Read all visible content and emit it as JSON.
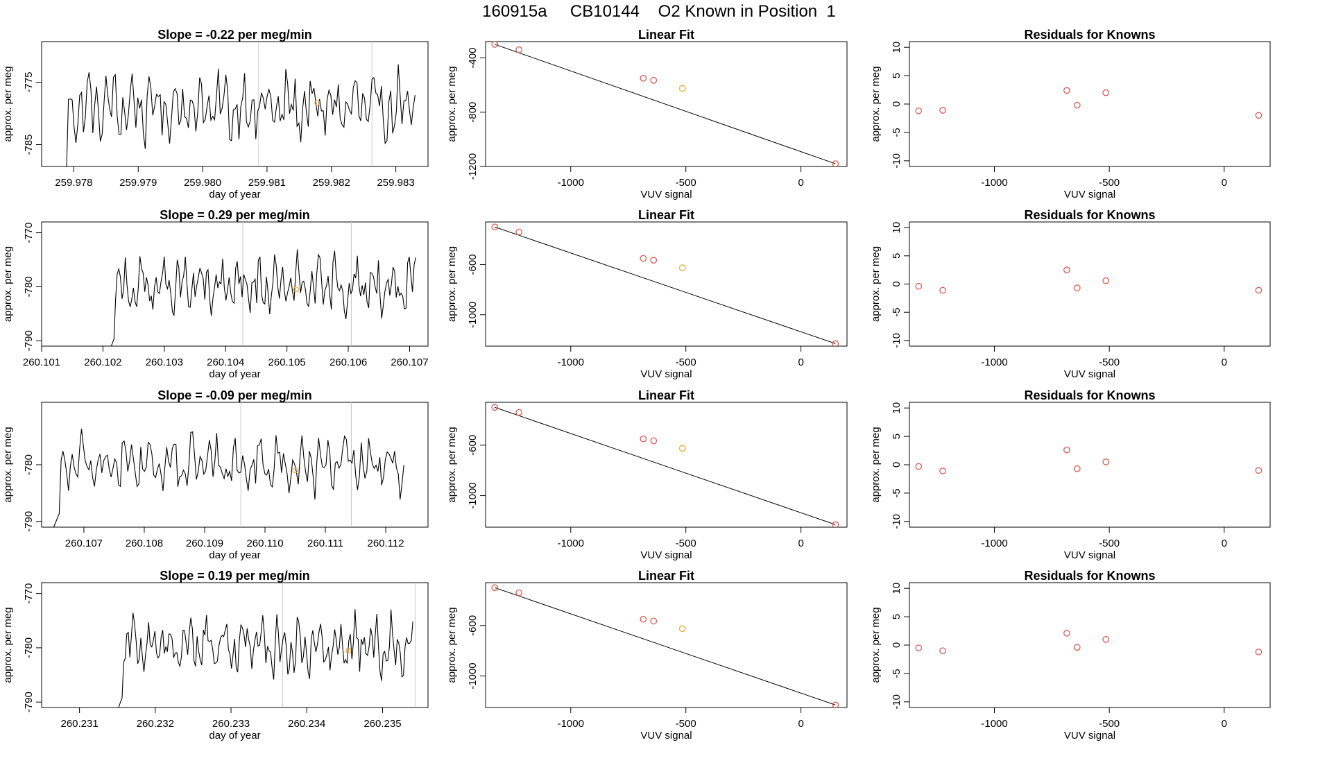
{
  "figure_title": "160915a     CB10144    O2 Known in Position  1",
  "colors": {
    "trace": "#000000",
    "marker_red": "#e0584f",
    "marker_orange": "#f0a830",
    "guide_line": "#c8c8c8",
    "axis": "#000000"
  },
  "chart_data": [
    {
      "panel": "row1-timeseries",
      "type": "line",
      "title": "Slope =  -0.22  per meg/min",
      "xlabel": "day of year",
      "ylabel": "approx. per meg",
      "xlim": [
        259.9775,
        259.9835
      ],
      "ylim": [
        -788.5,
        -768.5
      ],
      "xticks": [
        259.978,
        259.979,
        259.98,
        259.981,
        259.982,
        259.983
      ],
      "xtick_labels": [
        "259.978",
        "259.979",
        "259.980",
        "259.981",
        "259.982",
        "259.983"
      ],
      "yticks": [
        -775,
        -785
      ],
      "ytick_labels": [
        "-775",
        "-785"
      ],
      "trace_start": 259.9778,
      "trace_end": 259.9833,
      "baseline": -779,
      "amplitude": 5.5,
      "guide_x": [
        259.98087,
        259.98263
      ],
      "mean_point": [
        259.98178,
        -778.3
      ]
    },
    {
      "panel": "row1-fit",
      "type": "scatter",
      "title": "Linear Fit",
      "xlabel": "VUV signal",
      "ylabel": "approx. per meg",
      "xlim": [
        -1370,
        200
      ],
      "ylim": [
        -1200,
        -280
      ],
      "xticks": [
        -1000,
        -500,
        0
      ],
      "xtick_labels": [
        "-1000",
        "-500",
        "0"
      ],
      "yticks": [
        -400,
        -800,
        -1200
      ],
      "ytick_labels": [
        "-400",
        "-800",
        "-1200"
      ],
      "points": [
        {
          "x": -1330,
          "y": -300,
          "color": "red"
        },
        {
          "x": -1225,
          "y": -340,
          "color": "red"
        },
        {
          "x": -685,
          "y": -550,
          "color": "red"
        },
        {
          "x": -640,
          "y": -565,
          "color": "red"
        },
        {
          "x": -515,
          "y": -625,
          "color": "orange"
        },
        {
          "x": 150,
          "y": -1180,
          "color": "red"
        }
      ],
      "fit_line": [
        [
          -1330,
          -300
        ],
        [
          150,
          -1180
        ]
      ]
    },
    {
      "panel": "row1-residuals",
      "type": "scatter",
      "title": "Residuals for Knowns",
      "xlabel": "VUV signal",
      "ylabel": "approx. per meg",
      "xlim": [
        -1370,
        200
      ],
      "ylim": [
        -11,
        11
      ],
      "xticks": [
        -1000,
        -500,
        0
      ],
      "xtick_labels": [
        "-1000",
        "-500",
        "0"
      ],
      "yticks": [
        10,
        5,
        0,
        -5,
        -10
      ],
      "ytick_labels": [
        "10",
        "5",
        "0",
        "-5",
        "-10"
      ],
      "points": [
        {
          "x": -1330,
          "y": -1.2,
          "color": "red"
        },
        {
          "x": -1225,
          "y": -1.1,
          "color": "red"
        },
        {
          "x": -685,
          "y": 2.4,
          "color": "red"
        },
        {
          "x": -640,
          "y": -0.2,
          "color": "red"
        },
        {
          "x": -515,
          "y": 2.0,
          "color": "red"
        },
        {
          "x": 150,
          "y": -2.0,
          "color": "red"
        }
      ]
    },
    {
      "panel": "row2-timeseries",
      "type": "line",
      "title": "Slope =  0.29  per meg/min",
      "xlabel": "day of year",
      "ylabel": "approx. per meg",
      "xlim": [
        260.101,
        260.1073
      ],
      "ylim": [
        -791,
        -768
      ],
      "xticks": [
        260.101,
        260.102,
        260.103,
        260.104,
        260.105,
        260.106,
        260.107
      ],
      "xtick_labels": [
        "260.101",
        "260.102",
        "260.103",
        "260.104",
        "260.105",
        "260.106",
        "260.107"
      ],
      "yticks": [
        -770,
        -780,
        -790
      ],
      "ytick_labels": [
        "-770",
        "-780",
        "-790"
      ],
      "trace_start": 260.1021,
      "trace_end": 260.1071,
      "baseline": -780,
      "amplitude": 5.5,
      "guide_x": [
        260.10428,
        260.10605
      ],
      "mean_point": [
        260.10515,
        -780.5
      ]
    },
    {
      "panel": "row2-fit",
      "type": "scatter",
      "title": "Linear Fit",
      "xlabel": "VUV signal",
      "ylabel": "approx. per meg",
      "xlim": [
        -1370,
        200
      ],
      "ylim": [
        -1250,
        -260
      ],
      "xticks": [
        -1000,
        -500,
        0
      ],
      "xtick_labels": [
        "-1000",
        "-500",
        "0"
      ],
      "yticks": [
        -600,
        -1000
      ],
      "ytick_labels": [
        "-600",
        "-1000"
      ],
      "points": [
        {
          "x": -1330,
          "y": -300,
          "color": "red"
        },
        {
          "x": -1225,
          "y": -340,
          "color": "red"
        },
        {
          "x": -685,
          "y": -550,
          "color": "red"
        },
        {
          "x": -640,
          "y": -565,
          "color": "red"
        },
        {
          "x": -515,
          "y": -625,
          "color": "orange"
        },
        {
          "x": 150,
          "y": -1230,
          "color": "red"
        }
      ],
      "fit_line": [
        [
          -1330,
          -300
        ],
        [
          150,
          -1230
        ]
      ]
    },
    {
      "panel": "row2-residuals",
      "type": "scatter",
      "title": "Residuals for Knowns",
      "xlabel": "VUV signal",
      "ylabel": "approx. per meg",
      "xlim": [
        -1370,
        200
      ],
      "ylim": [
        -11,
        11
      ],
      "xticks": [
        -1000,
        -500,
        0
      ],
      "xtick_labels": [
        "-1000",
        "-500",
        "0"
      ],
      "yticks": [
        10,
        5,
        0,
        -5,
        -10
      ],
      "ytick_labels": [
        "10",
        "5",
        "0",
        "-5",
        "-10"
      ],
      "points": [
        {
          "x": -1330,
          "y": -0.4,
          "color": "red"
        },
        {
          "x": -1225,
          "y": -1.1,
          "color": "red"
        },
        {
          "x": -685,
          "y": 2.5,
          "color": "red"
        },
        {
          "x": -640,
          "y": -0.7,
          "color": "red"
        },
        {
          "x": -515,
          "y": 0.6,
          "color": "red"
        },
        {
          "x": 150,
          "y": -1.1,
          "color": "red"
        }
      ]
    },
    {
      "panel": "row3-timeseries",
      "type": "line",
      "title": "Slope =  -0.09  per meg/min",
      "xlabel": "day of year",
      "ylabel": "approx. per meg",
      "xlim": [
        260.1063,
        260.1127
      ],
      "ylim": [
        -791,
        -769
      ],
      "xticks": [
        260.107,
        260.108,
        260.109,
        260.11,
        260.111,
        260.112
      ],
      "xtick_labels": [
        "260.107",
        "260.108",
        "260.109",
        "260.110",
        "260.111",
        "260.112"
      ],
      "yticks": [
        -780,
        -790
      ],
      "ytick_labels": [
        "-780",
        "-790"
      ],
      "trace_start": 260.1065,
      "trace_end": 260.1123,
      "baseline": -780,
      "amplitude": 5.0,
      "guide_x": [
        260.1096,
        260.11143
      ],
      "mean_point": [
        260.1105,
        -781
      ]
    },
    {
      "panel": "row3-fit",
      "type": "scatter",
      "title": "Linear Fit",
      "xlabel": "VUV signal",
      "ylabel": "approx. per meg",
      "xlim": [
        -1370,
        200
      ],
      "ylim": [
        -1250,
        -260
      ],
      "xticks": [
        -1000,
        -500,
        0
      ],
      "xtick_labels": [
        "-1000",
        "-500",
        "0"
      ],
      "yticks": [
        -600,
        -1000
      ],
      "ytick_labels": [
        "-600",
        "-1000"
      ],
      "points": [
        {
          "x": -1330,
          "y": -300,
          "color": "red"
        },
        {
          "x": -1225,
          "y": -340,
          "color": "red"
        },
        {
          "x": -685,
          "y": -550,
          "color": "red"
        },
        {
          "x": -640,
          "y": -565,
          "color": "red"
        },
        {
          "x": -515,
          "y": -625,
          "color": "orange"
        },
        {
          "x": 150,
          "y": -1230,
          "color": "red"
        }
      ],
      "fit_line": [
        [
          -1330,
          -300
        ],
        [
          150,
          -1230
        ]
      ]
    },
    {
      "panel": "row3-residuals",
      "type": "scatter",
      "title": "Residuals for Knowns",
      "xlabel": "VUV signal",
      "ylabel": "approx. per meg",
      "xlim": [
        -1370,
        200
      ],
      "ylim": [
        -11,
        11
      ],
      "xticks": [
        -1000,
        -500,
        0
      ],
      "xtick_labels": [
        "-1000",
        "-500",
        "0"
      ],
      "yticks": [
        10,
        5,
        0,
        -5,
        -10
      ],
      "ytick_labels": [
        "10",
        "5",
        "0",
        "-5",
        "-10"
      ],
      "points": [
        {
          "x": -1330,
          "y": -0.3,
          "color": "red"
        },
        {
          "x": -1225,
          "y": -1.1,
          "color": "red"
        },
        {
          "x": -685,
          "y": 2.6,
          "color": "red"
        },
        {
          "x": -640,
          "y": -0.7,
          "color": "red"
        },
        {
          "x": -515,
          "y": 0.5,
          "color": "red"
        },
        {
          "x": 150,
          "y": -1.0,
          "color": "red"
        }
      ]
    },
    {
      "panel": "row4-timeseries",
      "type": "line",
      "title": "Slope =  0.19  per meg/min",
      "xlabel": "day of year",
      "ylabel": "approx. per meg",
      "xlim": [
        260.2305,
        260.2356
      ],
      "ylim": [
        -791,
        -768
      ],
      "xticks": [
        260.231,
        260.232,
        260.233,
        260.234,
        260.235
      ],
      "xtick_labels": [
        "260.231",
        "260.232",
        "260.233",
        "260.234",
        "260.235"
      ],
      "yticks": [
        -770,
        -780,
        -790
      ],
      "ytick_labels": [
        "-770",
        "-780",
        "-790"
      ],
      "trace_start": 260.2315,
      "trace_end": 260.2354,
      "baseline": -779.5,
      "amplitude": 5.5,
      "guide_x": [
        260.23368,
        260.23543
      ],
      "mean_point": [
        260.23455,
        -780.5
      ]
    },
    {
      "panel": "row4-fit",
      "type": "scatter",
      "title": "Linear Fit",
      "xlabel": "VUV signal",
      "ylabel": "approx. per meg",
      "xlim": [
        -1370,
        200
      ],
      "ylim": [
        -1250,
        -260
      ],
      "xticks": [
        -1000,
        -500,
        0
      ],
      "xtick_labels": [
        "-1000",
        "-500",
        "0"
      ],
      "yticks": [
        -600,
        -1000
      ],
      "ytick_labels": [
        "-600",
        "-1000"
      ],
      "points": [
        {
          "x": -1330,
          "y": -300,
          "color": "red"
        },
        {
          "x": -1225,
          "y": -340,
          "color": "red"
        },
        {
          "x": -685,
          "y": -550,
          "color": "red"
        },
        {
          "x": -640,
          "y": -565,
          "color": "red"
        },
        {
          "x": -515,
          "y": -625,
          "color": "orange"
        },
        {
          "x": 150,
          "y": -1230,
          "color": "red"
        }
      ],
      "fit_line": [
        [
          -1330,
          -300
        ],
        [
          150,
          -1230
        ]
      ]
    },
    {
      "panel": "row4-residuals",
      "type": "scatter",
      "title": "Residuals for Knowns",
      "xlabel": "VUV signal",
      "ylabel": "approx. per meg",
      "xlim": [
        -1370,
        200
      ],
      "ylim": [
        -11,
        11
      ],
      "xticks": [
        -1000,
        -500,
        0
      ],
      "xtick_labels": [
        "-1000",
        "-500",
        "0"
      ],
      "yticks": [
        10,
        5,
        0,
        -5,
        -10
      ],
      "ytick_labels": [
        "10",
        "5",
        "0",
        "-5",
        "-10"
      ],
      "points": [
        {
          "x": -1330,
          "y": -0.5,
          "color": "red"
        },
        {
          "x": -1225,
          "y": -1.0,
          "color": "red"
        },
        {
          "x": -685,
          "y": 2.1,
          "color": "red"
        },
        {
          "x": -640,
          "y": -0.4,
          "color": "red"
        },
        {
          "x": -515,
          "y": 1.0,
          "color": "red"
        },
        {
          "x": 150,
          "y": -1.2,
          "color": "red"
        }
      ]
    }
  ]
}
